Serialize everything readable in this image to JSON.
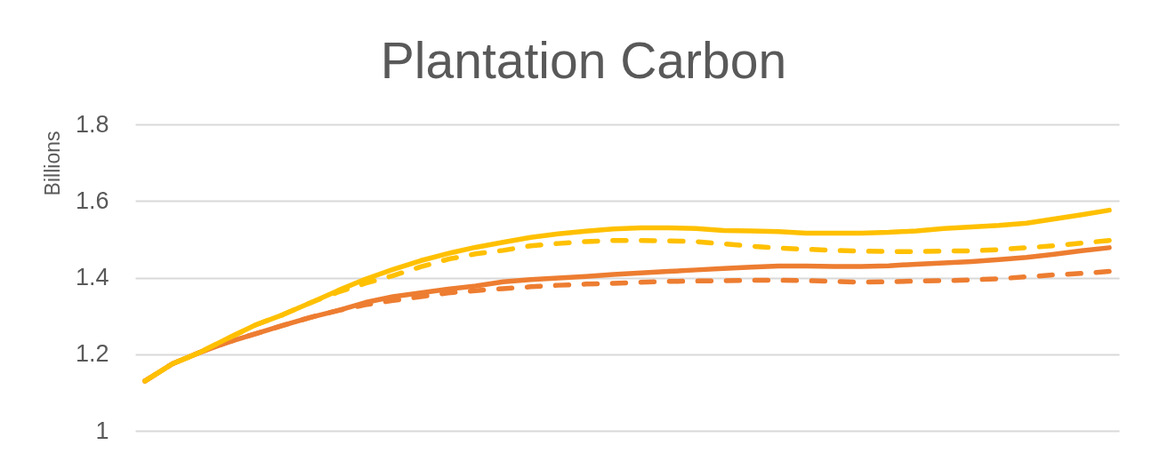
{
  "chart_data": {
    "type": "line",
    "title": "Plantation Carbon",
    "ylabel": "Billions",
    "categories": [
      null,
      null,
      null,
      null,
      null,
      null,
      null,
      null,
      null,
      null,
      null,
      null,
      null,
      null,
      null,
      null,
      null,
      null,
      null,
      null,
      null,
      null,
      null,
      null,
      null,
      null,
      null,
      null,
      null,
      null,
      null,
      null,
      null,
      null,
      null,
      null
    ],
    "ylim": [
      1,
      1.8
    ],
    "yticks": [
      1,
      1.2,
      1.4,
      1.6,
      1.8
    ],
    "grid": "y",
    "tick_labels": "y",
    "series": [
      {
        "color": "#ed7d31",
        "line_style": "dashed",
        "values": [
          1.13,
          1.175,
          1.205,
          1.231,
          1.253,
          1.275,
          1.296,
          1.314,
          1.329,
          1.34,
          1.35,
          1.36,
          1.366,
          1.371,
          1.376,
          1.38,
          1.383,
          1.385,
          1.388,
          1.39,
          1.391,
          1.392,
          1.393,
          1.393,
          1.392,
          1.39,
          1.388,
          1.389,
          1.391,
          1.392,
          1.394,
          1.397,
          1.402,
          1.407,
          1.411,
          1.416
        ]
      },
      {
        "color": "#ed7d31",
        "line_style": "solid",
        "values": [
          1.13,
          1.175,
          1.205,
          1.231,
          1.253,
          1.275,
          1.296,
          1.314,
          1.335,
          1.35,
          1.36,
          1.37,
          1.378,
          1.389,
          1.395,
          1.399,
          1.403,
          1.408,
          1.412,
          1.416,
          1.42,
          1.424,
          1.427,
          1.43,
          1.43,
          1.429,
          1.429,
          1.431,
          1.435,
          1.438,
          1.442,
          1.447,
          1.453,
          1.461,
          1.47,
          1.478
        ]
      },
      {
        "color": "#ffc000",
        "line_style": "dashed",
        "values": [
          1.13,
          1.175,
          1.205,
          1.241,
          1.276,
          1.303,
          1.334,
          1.362,
          1.385,
          1.405,
          1.428,
          1.448,
          1.462,
          1.471,
          1.483,
          1.489,
          1.494,
          1.497,
          1.497,
          1.496,
          1.494,
          1.488,
          1.482,
          1.477,
          1.474,
          1.471,
          1.469,
          1.468,
          1.468,
          1.469,
          1.47,
          1.473,
          1.478,
          1.483,
          1.49,
          1.497
        ]
      },
      {
        "color": "#ffc000",
        "line_style": "solid",
        "values": [
          1.13,
          1.175,
          1.205,
          1.241,
          1.276,
          1.303,
          1.334,
          1.366,
          1.396,
          1.421,
          1.444,
          1.463,
          1.479,
          1.492,
          1.505,
          1.514,
          1.521,
          1.527,
          1.53,
          1.53,
          1.528,
          1.523,
          1.522,
          1.52,
          1.516,
          1.516,
          1.516,
          1.518,
          1.522,
          1.528,
          1.532,
          1.536,
          1.542,
          1.553,
          1.564,
          1.576
        ]
      }
    ]
  }
}
